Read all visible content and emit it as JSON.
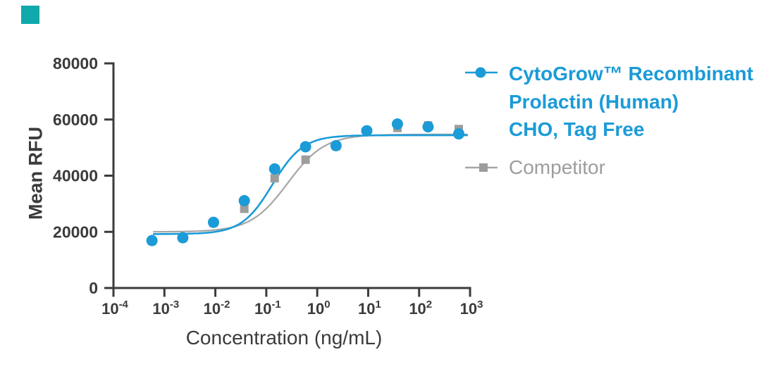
{
  "brand": {
    "corner_square_color": "#0FA9AC"
  },
  "chart_data": {
    "type": "scatter",
    "title": "",
    "xlabel": "Concentration (ng/mL)",
    "ylabel": "Mean RFU",
    "x_scale": "log10",
    "x_tick_exponents": [
      -4,
      -3,
      -2,
      -1,
      0,
      1,
      2,
      3
    ],
    "xlim_log": [
      -4,
      3
    ],
    "y_ticks": [
      0,
      20000,
      40000,
      60000,
      80000
    ],
    "ylim": [
      0,
      80000
    ],
    "grid": false,
    "axis_color": "#3B3B3B",
    "legend_position": "right",
    "series": [
      {
        "name": "CytoGrow™ Recombinant Prolactin (Human) CHO, Tag Free",
        "marker": "circle",
        "color": "#1B9BD7",
        "line_color": "#1B9BD7",
        "x": [
          0.00057,
          0.0023,
          0.0092,
          0.037,
          0.146,
          0.59,
          2.34,
          9.4,
          37.5,
          150,
          600
        ],
        "y": [
          16900,
          17900,
          23400,
          31100,
          42400,
          50300,
          50700,
          56000,
          58400,
          57400,
          54900
        ],
        "fit": {
          "model": "4PL",
          "bottom": 19200,
          "top": 54400,
          "log_ec50": -0.88,
          "hill": 1.45
        }
      },
      {
        "name": "Competitor",
        "marker": "square",
        "color": "#9D9D9D",
        "line_color": "#A6A6A6",
        "x": [
          0.00057,
          0.0023,
          0.0092,
          0.037,
          0.146,
          0.59,
          2.34,
          9.4,
          37.5,
          150,
          600
        ],
        "y": [
          16800,
          17800,
          23200,
          28200,
          39100,
          45700,
          50500,
          55900,
          57000,
          57900,
          56600
        ],
        "fit": {
          "model": "4PL",
          "bottom": 20000,
          "top": 54700,
          "log_ec50": -0.58,
          "hill": 1.2
        }
      }
    ]
  },
  "legend": {
    "series1": {
      "lines": [
        "CytoGrow™ Recombinant",
        "Prolactin (Human)",
        "CHO, Tag Free"
      ],
      "color": "#1B9BD7"
    },
    "series2": {
      "label": "Competitor",
      "color": "#9D9D9D"
    }
  }
}
